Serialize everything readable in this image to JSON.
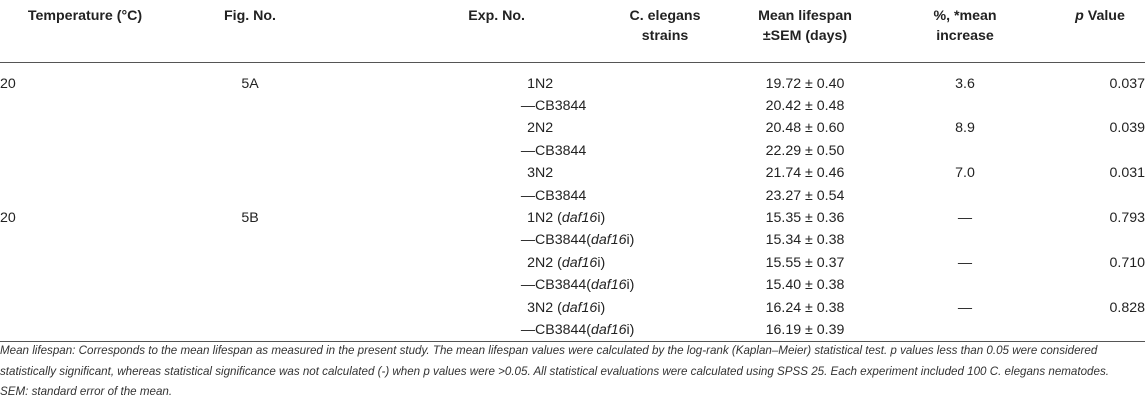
{
  "table": {
    "headers": {
      "temperature": "Temperature (°C)",
      "fig": "Fig. No.",
      "exp": "Exp. No.",
      "strains_line1": "C. elegans",
      "strains_line2": "strains",
      "mean_line1": "Mean lifespan",
      "mean_line2": "±SEM (days)",
      "increase_line1": "%, *mean",
      "increase_line2": "increase",
      "p_italic": "p",
      "p_rest": " Value"
    },
    "rows": [
      {
        "temp": "20",
        "fig": "5A",
        "exp": "1",
        "strain": "N2",
        "strain_italic": "",
        "strain_suffix": "",
        "mean": "19.72 ± 0.40",
        "increase": "3.6",
        "p": "0.037"
      },
      {
        "temp": "",
        "fig": "",
        "exp": "—",
        "strain": "CB3844",
        "strain_italic": "",
        "strain_suffix": "",
        "mean": "20.42 ± 0.48",
        "increase": "",
        "p": ""
      },
      {
        "temp": "",
        "fig": "",
        "exp": "2",
        "strain": "N2",
        "strain_italic": "",
        "strain_suffix": "",
        "mean": "20.48 ± 0.60",
        "increase": "8.9",
        "p": "0.039"
      },
      {
        "temp": "",
        "fig": "",
        "exp": "—",
        "strain": "CB3844",
        "strain_italic": "",
        "strain_suffix": "",
        "mean": "22.29 ± 0.50",
        "increase": "",
        "p": ""
      },
      {
        "temp": "",
        "fig": "",
        "exp": "3",
        "strain": "N2",
        "strain_italic": "",
        "strain_suffix": "",
        "mean": "21.74 ± 0.46",
        "increase": "7.0",
        "p": "0.031"
      },
      {
        "temp": "",
        "fig": "",
        "exp": "—",
        "strain": "CB3844",
        "strain_italic": "",
        "strain_suffix": "",
        "mean": "23.27 ± 0.54",
        "increase": "",
        "p": ""
      },
      {
        "temp": "20",
        "fig": "5B",
        "exp": "1",
        "strain": "N2 (",
        "strain_italic": "daf16",
        "strain_suffix": "i)",
        "mean": "15.35 ± 0.36",
        "increase": "—",
        "p": "0.793"
      },
      {
        "temp": "",
        "fig": "",
        "exp": "—",
        "strain": "CB3844(",
        "strain_italic": "daf16",
        "strain_suffix": "i)",
        "mean": "15.34 ± 0.38",
        "increase": "",
        "p": ""
      },
      {
        "temp": "",
        "fig": "",
        "exp": "2",
        "strain": "N2 (",
        "strain_italic": "daf16",
        "strain_suffix": "i)",
        "mean": "15.55 ± 0.37",
        "increase": "—",
        "p": "0.710"
      },
      {
        "temp": "",
        "fig": "",
        "exp": "—",
        "strain": "CB3844(",
        "strain_italic": "daf16",
        "strain_suffix": "i)",
        "mean": "15.40 ± 0.38",
        "increase": "",
        "p": ""
      },
      {
        "temp": "",
        "fig": "",
        "exp": "3",
        "strain": "N2 (",
        "strain_italic": "daf16",
        "strain_suffix": "i)",
        "mean": "16.24 ± 0.38",
        "increase": "—",
        "p": "0.828"
      },
      {
        "temp": "",
        "fig": "",
        "exp": "—",
        "strain": "CB3844(",
        "strain_italic": "daf16",
        "strain_suffix": "i)",
        "mean": "16.19 ± 0.39",
        "increase": "",
        "p": ""
      }
    ]
  },
  "footnote": "Mean lifespan: Corresponds to the mean lifespan as measured in the present study. The mean lifespan values were calculated by the log-rank (Kaplan–Meier) statistical test. p values less than 0.05 were considered statistically significant, whereas statistical significance was not calculated (-) when p values were >0.05. All statistical evaluations were calculated using SPSS 25. Each experiment included 100 C. elegans nematodes. SEM: standard error of the mean."
}
